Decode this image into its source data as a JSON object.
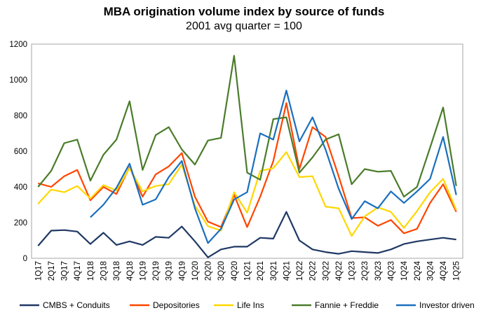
{
  "chart_data": {
    "type": "line",
    "title": "MBA origination volume index by source of funds",
    "subtitle": "2001 avg quarter = 100",
    "xlabel": "",
    "ylabel": "",
    "ylim": [
      0,
      1200
    ],
    "yticks": [
      0,
      200,
      400,
      600,
      800,
      1000,
      1200
    ],
    "grid": "none",
    "legend_position": "bottom",
    "categories": [
      "1Q17",
      "2Q17",
      "3Q17",
      "4Q17",
      "1Q18",
      "2Q18",
      "3Q18",
      "4Q18",
      "1Q19",
      "2Q19",
      "3Q19",
      "4Q19",
      "1Q20",
      "2Q20",
      "3Q20",
      "4Q20",
      "1Q21",
      "2Q21",
      "3Q21",
      "4Q21",
      "1Q22",
      "2Q22",
      "3Q22",
      "4Q22",
      "1Q23",
      "2Q23",
      "3Q23",
      "4Q23",
      "1Q24",
      "2Q24",
      "3Q24",
      "4Q24",
      "1Q25"
    ],
    "series": [
      {
        "name": "CMBS + Conduits",
        "color": "#1f3864",
        "values": [
          70,
          155,
          158,
          150,
          80,
          143,
          75,
          95,
          75,
          120,
          115,
          178,
          95,
          5,
          50,
          65,
          65,
          115,
          110,
          260,
          100,
          50,
          35,
          25,
          40,
          35,
          30,
          50,
          80,
          95,
          105,
          115,
          105
        ]
      },
      {
        "name": "Depositories",
        "color": "#ff4500",
        "values": [
          420,
          400,
          460,
          495,
          325,
          400,
          360,
          510,
          345,
          470,
          515,
          590,
          345,
          205,
          175,
          355,
          175,
          345,
          545,
          870,
          500,
          735,
          680,
          460,
          225,
          230,
          182,
          215,
          140,
          165,
          310,
          415,
          260
        ]
      },
      {
        "name": "Life Ins",
        "color": "#ffd700",
        "values": [
          305,
          385,
          370,
          405,
          335,
          410,
          380,
          505,
          375,
          405,
          415,
          525,
          295,
          180,
          155,
          370,
          255,
          490,
          505,
          595,
          455,
          460,
          290,
          280,
          125,
          235,
          285,
          260,
          170,
          265,
          370,
          445,
          270
        ]
      },
      {
        "name": "Fannie + Freddie",
        "color": "#4a7c2a",
        "values": [
          400,
          490,
          645,
          665,
          435,
          580,
          665,
          880,
          495,
          690,
          735,
          610,
          525,
          660,
          675,
          1135,
          480,
          440,
          780,
          790,
          480,
          565,
          665,
          695,
          415,
          500,
          485,
          490,
          345,
          400,
          620,
          845,
          405
        ]
      },
      {
        "name": "Investor driven",
        "color": "#1a6fbd",
        "values": [
          null,
          null,
          null,
          null,
          230,
          300,
          395,
          530,
          300,
          330,
          455,
          545,
          280,
          85,
          165,
          330,
          370,
          700,
          665,
          940,
          655,
          790,
          610,
          390,
          220,
          320,
          280,
          375,
          310,
          375,
          445,
          680,
          355
        ]
      }
    ]
  }
}
